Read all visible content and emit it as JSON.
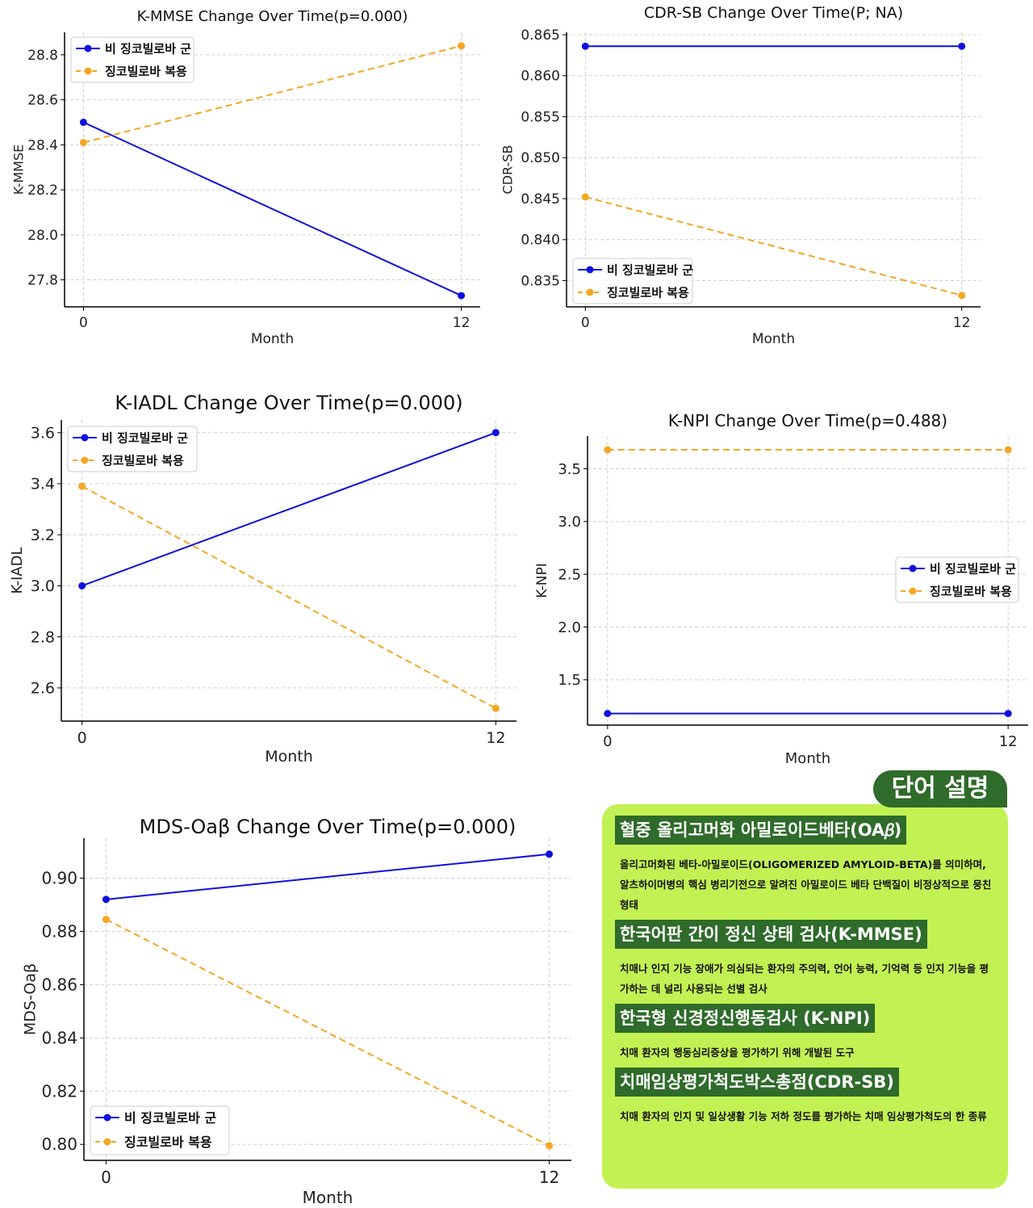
{
  "legend": {
    "series1": "비 징코빌로바 군",
    "series2": "징코빌로바 복용"
  },
  "colors": {
    "series1": "#0f0fdf",
    "series2": "#f5a623",
    "glossary_bg": "#c2f153",
    "glossary_term_bg": "#2f6b2a"
  },
  "chart_data": [
    {
      "type": "line",
      "title": "K-MMSE Change Over Time(p=0.000)",
      "xlabel": "Month",
      "ylabel": "K-MMSE",
      "x": [
        0,
        12
      ],
      "xlim": [
        -0.6,
        12.6
      ],
      "ylim": [
        27.68,
        28.9
      ],
      "yticks": [
        27.8,
        28.0,
        28.2,
        28.4,
        28.6,
        28.8
      ],
      "ytick_labels": [
        "27.8",
        "28.0",
        "28.2",
        "28.4",
        "28.6",
        "28.8"
      ],
      "xticks": [
        0,
        12
      ],
      "xtick_labels": [
        "0",
        "12"
      ],
      "legend_loc": "upper left",
      "series": [
        {
          "name": "비 징코빌로바 군",
          "values": [
            28.5,
            27.73
          ]
        },
        {
          "name": "징코빌로바 복용",
          "values": [
            28.41,
            28.84
          ]
        }
      ]
    },
    {
      "type": "line",
      "title": "CDR-SB Change Over Time(P; NA)",
      "xlabel": "Month",
      "ylabel": "CDR-SB",
      "x": [
        0,
        12
      ],
      "xlim": [
        -0.6,
        12.6
      ],
      "ylim": [
        0.8318,
        0.8653
      ],
      "yticks": [
        0.835,
        0.84,
        0.845,
        0.85,
        0.855,
        0.86,
        0.865
      ],
      "ytick_labels": [
        "0.835",
        "0.840",
        "0.845",
        "0.850",
        "0.855",
        "0.860",
        "0.865"
      ],
      "xticks": [
        0,
        12
      ],
      "xtick_labels": [
        "0",
        "12"
      ],
      "legend_loc": "lower left",
      "series": [
        {
          "name": "비 징코빌로바 군",
          "values": [
            0.8636,
            0.8636
          ]
        },
        {
          "name": "징코빌로바 복용",
          "values": [
            0.8452,
            0.8332
          ]
        }
      ]
    },
    {
      "type": "line",
      "title": "K-IADL Change Over Time(p=0.000)",
      "xlabel": "Month",
      "ylabel": "K-IADL",
      "x": [
        0,
        12
      ],
      "xlim": [
        -0.6,
        12.6
      ],
      "ylim": [
        2.47,
        3.65
      ],
      "yticks": [
        2.6,
        2.8,
        3.0,
        3.2,
        3.4,
        3.6
      ],
      "ytick_labels": [
        "2.6",
        "2.8",
        "3.0",
        "3.2",
        "3.4",
        "3.6"
      ],
      "xticks": [
        0,
        12
      ],
      "xtick_labels": [
        "0",
        "12"
      ],
      "legend_loc": "upper left",
      "series": [
        {
          "name": "비 징코빌로바 군",
          "values": [
            3.0,
            3.6
          ]
        },
        {
          "name": "징코빌로바 복용",
          "values": [
            3.39,
            2.52
          ]
        }
      ]
    },
    {
      "type": "line",
      "title": "K-NPI Change Over Time(p=0.488)",
      "xlabel": "Month",
      "ylabel": "K-NPI",
      "x": [
        0,
        12
      ],
      "xlim": [
        -0.6,
        12.6
      ],
      "ylim": [
        1.07,
        3.81
      ],
      "yticks": [
        1.5,
        2.0,
        2.5,
        3.0,
        3.5
      ],
      "ytick_labels": [
        "1.5",
        "2.0",
        "2.5",
        "3.0",
        "3.5"
      ],
      "xticks": [
        0,
        12
      ],
      "xtick_labels": [
        "0",
        "12"
      ],
      "legend_loc": "center right",
      "series": [
        {
          "name": "비 징코빌로바 군",
          "values": [
            1.18,
            1.18
          ]
        },
        {
          "name": "징코빌로바 복용",
          "values": [
            3.68,
            3.68
          ]
        }
      ]
    },
    {
      "type": "line",
      "title": "MDS-Oaβ Change Over Time(p=0.000)",
      "xlabel": "Month",
      "ylabel": "MDS-Oaβ",
      "x": [
        0,
        12
      ],
      "xlim": [
        -0.6,
        12.6
      ],
      "ylim": [
        0.794,
        0.915
      ],
      "yticks": [
        0.8,
        0.82,
        0.84,
        0.86,
        0.88,
        0.9
      ],
      "ytick_labels": [
        "0.80",
        "0.82",
        "0.84",
        "0.86",
        "0.88",
        "0.90"
      ],
      "xticks": [
        0,
        12
      ],
      "xtick_labels": [
        "0",
        "12"
      ],
      "legend_loc": "lower left",
      "series": [
        {
          "name": "비 징코빌로바 군",
          "values": [
            0.892,
            0.909
          ]
        },
        {
          "name": "징코빌로바 복용",
          "values": [
            0.8845,
            0.7995
          ]
        }
      ]
    }
  ],
  "glossary": {
    "header": "단어 설명",
    "items": [
      {
        "term": "혈중 올리고머화 아밀로이드베타(OA𝛽)",
        "desc": "올리고머화된 베타-아밀로이드(OLIGOMERIZED AMYLOID-BETA)를 의미하며, 알츠하이머병의 핵심 병리기전으로 알려진 아밀로이드 베타 단백질이 비정상적으로 뭉친 형태"
      },
      {
        "term": "한국어판 간이 정신 상태 검사(K-MMSE)",
        "desc": "치매나 인지 기능 장애가 의심되는 환자의 주의력, 언어 능력, 기억력 등 인지 기능을 평가하는 데 널리 사용되는 선별 검사"
      },
      {
        "term": "한국형 신경정신행동검사 (K-NPI)",
        "desc": "치매 환자의 행동심리증상을 평가하기 위해 개발된 도구"
      },
      {
        "term": "치매임상평가척도박스총점(CDR-SB)",
        "desc": "치매 환자의 인지 및 일상생활 기능 저하 정도를 평가하는 치매 임상평가척도의 한 종류"
      }
    ]
  }
}
